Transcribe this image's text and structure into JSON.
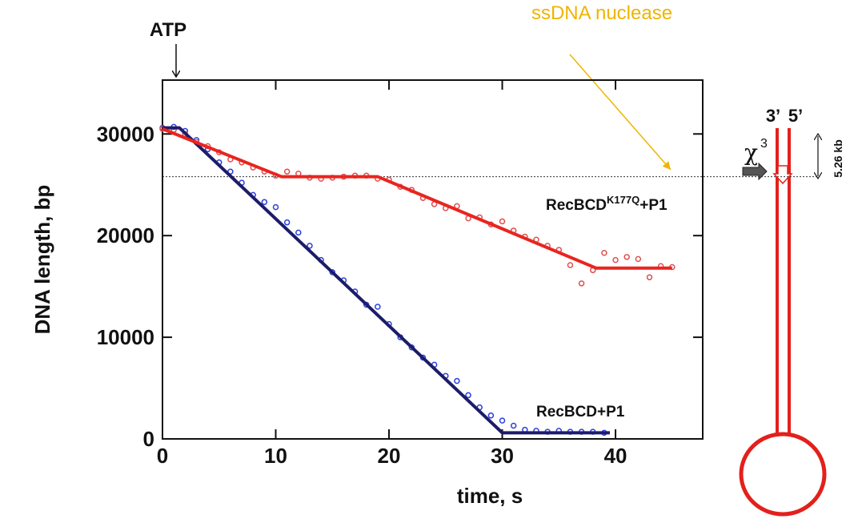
{
  "chart_data": {
    "type": "scatter",
    "xlabel": "time, s",
    "ylabel": "DNA length, bp",
    "xlim": [
      0,
      47.7
    ],
    "ylim": [
      0,
      35300
    ],
    "xticks": [
      0,
      10,
      20,
      30,
      40
    ],
    "yticks": [
      0,
      10000,
      20000,
      30000
    ],
    "reference_line": 25800,
    "annotations": {
      "atp": "ATP",
      "nuclease": "ssDNA nuclease"
    },
    "series": [
      {
        "name": "RecBCD+P1",
        "color": "#2b3fe0",
        "x": [
          0,
          1,
          2,
          3,
          4,
          5,
          6,
          7,
          8,
          9,
          10,
          11,
          12,
          13,
          14,
          15,
          16,
          17,
          18,
          19,
          20,
          21,
          22,
          23,
          24,
          25,
          26,
          27,
          28,
          29,
          30,
          31,
          32,
          33,
          34,
          35,
          36,
          37,
          38,
          39
        ],
        "values": [
          30600,
          30700,
          30300,
          29400,
          28500,
          27200,
          26300,
          25200,
          24000,
          23300,
          22800,
          21300,
          20300,
          19000,
          17600,
          16400,
          15600,
          14500,
          13200,
          13000,
          11300,
          10000,
          9000,
          8000,
          7300,
          6200,
          5700,
          4300,
          3100,
          2300,
          1800,
          1300,
          900,
          800,
          700,
          800,
          700,
          700,
          700,
          600
        ]
      },
      {
        "name_parts": {
          "base": "RecBCD",
          "sup": "K177Q",
          "tail": "+P1"
        },
        "color": "#e05050",
        "x": [
          0,
          1,
          2,
          3,
          4,
          5,
          6,
          7,
          8,
          9,
          10,
          11,
          12,
          13,
          14,
          15,
          16,
          17,
          18,
          19,
          20,
          21,
          22,
          23,
          24,
          25,
          26,
          27,
          28,
          29,
          30,
          31,
          32,
          33,
          34,
          35,
          36,
          37,
          38,
          39,
          40,
          41,
          42,
          43,
          44,
          45
        ],
        "values": [
          30500,
          30400,
          30000,
          29200,
          28800,
          28200,
          27500,
          27200,
          26700,
          26300,
          25900,
          26300,
          26100,
          25700,
          25600,
          25700,
          25800,
          25900,
          25900,
          25600,
          25500,
          24800,
          24500,
          23700,
          23100,
          22700,
          22900,
          21700,
          21800,
          21100,
          21400,
          20500,
          19900,
          19600,
          19000,
          18600,
          17100,
          15300,
          16600,
          18300,
          17600,
          17900,
          17700,
          15900,
          17000,
          16900
        ]
      }
    ],
    "fits": [
      {
        "color": "#1c1c6a",
        "x": [
          0,
          1.5,
          30,
          39.5
        ],
        "values": [
          30600,
          30600,
          600,
          600
        ]
      },
      {
        "color": "#e8251f",
        "x": [
          0,
          10.5,
          19,
          38.3,
          45
        ],
        "values": [
          30500,
          25800,
          25800,
          16800,
          16800
        ]
      }
    ],
    "diagram": {
      "end3": "3’",
      "end5": "5’",
      "length": "5.26 kb",
      "chi": "χ",
      "chi_sup": "3"
    }
  }
}
